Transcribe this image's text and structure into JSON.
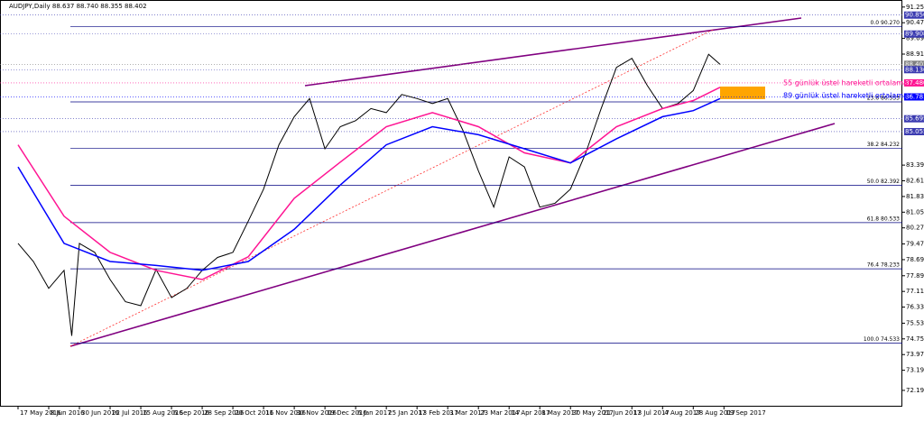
{
  "chart_data": {
    "type": "line",
    "title": "AUDJPY,Daily 88.637 88.740 88.355 88.402",
    "ylim": [
      71.2,
      91.6
    ],
    "xlim": [
      -9.4,
      461
    ],
    "yticks": [
      {
        "value": 91.25,
        "label": "91.250"
      },
      {
        "value": 90.47,
        "label": "90.470"
      },
      {
        "value": 89.69,
        "label": "89.690"
      },
      {
        "value": 88.91,
        "label": "88.910"
      },
      {
        "value": 83.39,
        "label": "83.390"
      },
      {
        "value": 82.61,
        "label": "82.610"
      },
      {
        "value": 81.83,
        "label": "81.830"
      },
      {
        "value": 81.05,
        "label": "81.050"
      },
      {
        "value": 80.27,
        "label": "80.270"
      },
      {
        "value": 79.47,
        "label": "79.470"
      },
      {
        "value": 78.69,
        "label": "78.690"
      },
      {
        "value": 77.89,
        "label": "77.890"
      },
      {
        "value": 77.11,
        "label": "77.110"
      },
      {
        "value": 76.33,
        "label": "76.330"
      },
      {
        "value": 75.53,
        "label": "75.530"
      },
      {
        "value": 74.75,
        "label": "74.750"
      },
      {
        "value": 73.97,
        "label": "73.970"
      },
      {
        "value": 73.19,
        "label": "73.190"
      },
      {
        "value": 72.19,
        "label": "72.190"
      }
    ],
    "xticks": [
      {
        "value": 0,
        "label": "17 May 2016"
      },
      {
        "value": 16,
        "label": "8 Jun 2016"
      },
      {
        "value": 32,
        "label": "30 Jun 2016"
      },
      {
        "value": 48,
        "label": "22 Jul 2016"
      },
      {
        "value": 64,
        "label": "15 Aug 2016"
      },
      {
        "value": 80,
        "label": "6 Sep 2016"
      },
      {
        "value": 96,
        "label": "28 Sep 2016"
      },
      {
        "value": 112,
        "label": "20 Oct 2016"
      },
      {
        "value": 128,
        "label": "11 Nov 2016"
      },
      {
        "value": 144,
        "label": "30 Nov 2016"
      },
      {
        "value": 160,
        "label": "19 Dec 2016"
      },
      {
        "value": 176,
        "label": "6 Jan 2017"
      },
      {
        "value": 192,
        "label": "25 Jan 2017"
      },
      {
        "value": 208,
        "label": "13 Feb 2017"
      },
      {
        "value": 224,
        "label": "3 Mar 2017"
      },
      {
        "value": 240,
        "label": "23 Mar 2017"
      },
      {
        "value": 256,
        "label": "14 Apr 2017"
      },
      {
        "value": 272,
        "label": "8 May 2017"
      },
      {
        "value": 288,
        "label": "30 May 2017"
      },
      {
        "value": 304,
        "label": "21 Jun 2017"
      },
      {
        "value": 320,
        "label": "13 Jul 2017"
      },
      {
        "value": 336,
        "label": "4 Aug 2017"
      },
      {
        "value": 352,
        "label": "28 Aug 2017"
      },
      {
        "value": 368,
        "label": "19 Sep 2017"
      }
    ],
    "series": [
      {
        "name": "AUDJPY",
        "color": "#000000",
        "x": [
          0,
          8,
          16,
          24,
          28,
          32,
          40,
          48,
          56,
          64,
          72,
          80,
          88,
          96,
          104,
          112,
          120,
          128,
          136,
          144,
          152,
          160,
          168,
          176,
          184,
          192,
          200,
          208,
          216,
          224,
          232,
          240,
          248,
          256,
          264,
          272,
          280,
          288,
          296,
          304,
          312,
          320,
          328,
          336,
          344,
          352,
          360,
          366
        ],
        "values": [
          79.5,
          78.6,
          77.26,
          78.16,
          74.9,
          79.5,
          79.05,
          77.7,
          76.6,
          76.4,
          78.2,
          76.8,
          77.26,
          78.16,
          78.8,
          79.05,
          80.6,
          82.2,
          84.4,
          85.8,
          86.7,
          84.2,
          85.3,
          85.6,
          86.2,
          86.0,
          86.9,
          86.7,
          86.45,
          86.7,
          85.1,
          83.1,
          81.3,
          83.8,
          83.3,
          81.3,
          81.5,
          82.2,
          84.0,
          86.2,
          88.25,
          88.7,
          87.35,
          86.2,
          86.45,
          87.1,
          88.9,
          88.4
        ]
      },
      {
        "name": "55 günlük üstel hareketli ortalama",
        "color": "#ff1493",
        "x": [
          0,
          24,
          48,
          72,
          96,
          120,
          144,
          168,
          192,
          216,
          240,
          264,
          288,
          312,
          336,
          352,
          366
        ],
        "values": [
          84.4,
          80.85,
          79.05,
          78.16,
          77.7,
          78.83,
          81.74,
          83.54,
          85.3,
          86.0,
          85.3,
          84.0,
          83.5,
          85.3,
          86.2,
          86.6,
          87.26
        ]
      },
      {
        "name": "89 günlük üstel hareketli ortalama",
        "color": "#0000ff",
        "x": [
          0,
          24,
          48,
          72,
          96,
          120,
          144,
          168,
          192,
          216,
          240,
          264,
          288,
          312,
          336,
          352,
          366
        ],
        "values": [
          83.3,
          79.5,
          78.6,
          78.4,
          78.16,
          78.6,
          80.2,
          82.4,
          84.4,
          85.3,
          84.9,
          84.2,
          83.5,
          84.7,
          85.8,
          86.1,
          86.7
        ]
      }
    ],
    "fib_levels": [
      {
        "value": 90.27,
        "label": "0.0  90.270"
      },
      {
        "value": 86.533,
        "label": "23.6  86.533"
      },
      {
        "value": 84.232,
        "label": "38.2  84.232"
      },
      {
        "value": 82.392,
        "label": "50.0  82.392"
      },
      {
        "value": 80.533,
        "label": "61.8  80.533"
      },
      {
        "value": 78.233,
        "label": "76.4  78.233"
      },
      {
        "value": 74.533,
        "label": "100.0  74.533"
      }
    ],
    "price_levels": [
      {
        "value": 90.85,
        "label": "90.850",
        "color": "#3a3ab0"
      },
      {
        "value": 89.908,
        "label": "89.908",
        "color": "#3a3ab0"
      },
      {
        "value": 88.402,
        "label": "88.402",
        "color": "#808080"
      },
      {
        "value": 88.136,
        "label": "88.136",
        "color": "#3a3ab0"
      },
      {
        "value": 87.48,
        "label": "87.480",
        "color": "#ff1493"
      },
      {
        "value": 86.781,
        "label": "86.781",
        "color": "#0000ff"
      },
      {
        "value": 85.695,
        "label": "85.695",
        "color": "#3a3ab0"
      },
      {
        "value": 85.055,
        "label": "85.055",
        "color": "#3a3ab0"
      }
    ]
  }
}
